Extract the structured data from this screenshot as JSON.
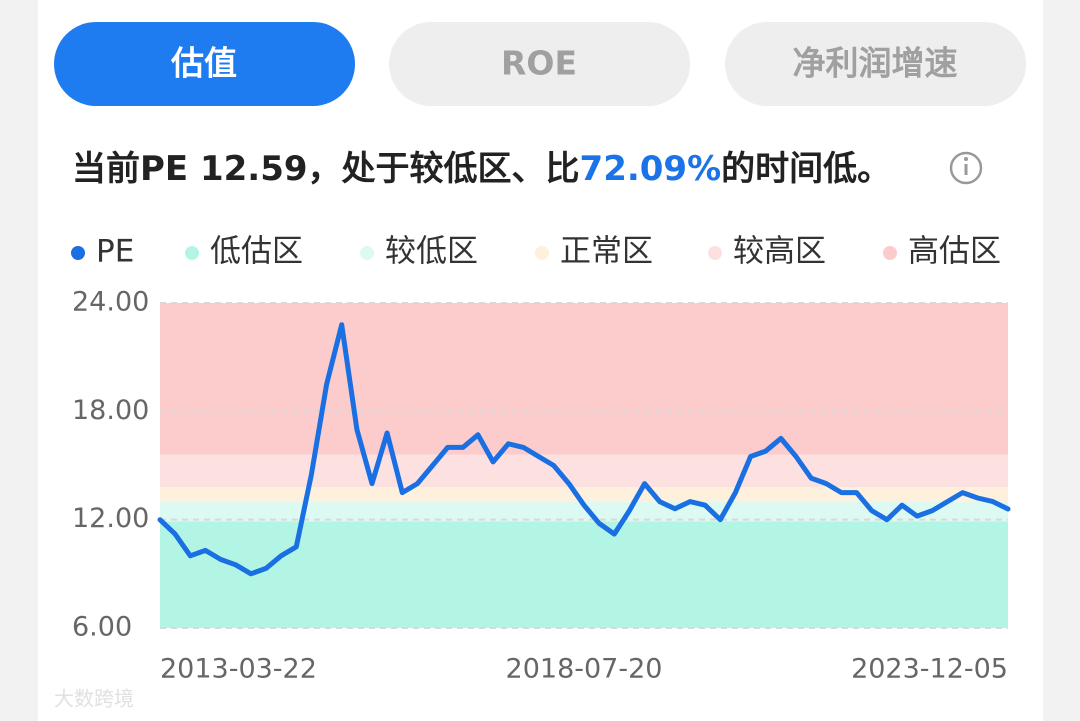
{
  "tabs": [
    "估值",
    "ROE",
    "净利润增速"
  ],
  "headline": {
    "prefix": "当前PE 12.59，处于较低区、比",
    "highlight": "72.09%",
    "suffix": "的时间低。"
  },
  "watermark": "大数跨境",
  "chart_data": {
    "type": "line",
    "categories": [
      "2013-03-22",
      null,
      null,
      null,
      null,
      null,
      null,
      null,
      null,
      null,
      null,
      null,
      null,
      null,
      null,
      null,
      null,
      null,
      null,
      null,
      null,
      null,
      null,
      null,
      null,
      null,
      null,
      null,
      "2018-07-20",
      null,
      null,
      null,
      null,
      null,
      null,
      null,
      null,
      null,
      null,
      null,
      null,
      null,
      null,
      null,
      null,
      null,
      null,
      null,
      null,
      null,
      null,
      null,
      null,
      null,
      null,
      null,
      "2023-12-05"
    ],
    "series": [
      {
        "name": "PE",
        "color": "#1a6fe3",
        "values": [
          12.0,
          11.2,
          10.0,
          10.3,
          9.8,
          9.5,
          9.0,
          9.3,
          10.0,
          10.5,
          14.5,
          19.5,
          22.8,
          17.0,
          14.0,
          16.8,
          13.5,
          14.0,
          15.0,
          16.0,
          16.0,
          16.7,
          15.2,
          16.2,
          16.0,
          15.5,
          15.0,
          14.0,
          12.8,
          11.8,
          11.2,
          12.5,
          14.0,
          13.0,
          12.6,
          13.0,
          12.8,
          12.0,
          13.5,
          15.5,
          15.8,
          16.5,
          15.5,
          14.3,
          14.0,
          13.5,
          13.5,
          12.5,
          12.0,
          12.8,
          12.2,
          12.5,
          13.0,
          13.5,
          13.2,
          13.0,
          12.59
        ]
      }
    ],
    "zones": [
      {
        "name": "低估区",
        "color": "#b2f5e4",
        "range": [
          6,
          11.9
        ]
      },
      {
        "name": "较低区",
        "color": "#dcfaf2",
        "range": [
          11.9,
          13.0
        ]
      },
      {
        "name": "正常区",
        "color": "#fdf1dd",
        "range": [
          13.0,
          13.8
        ]
      },
      {
        "name": "较高区",
        "color": "#fde1e1",
        "range": [
          13.8,
          15.6
        ]
      },
      {
        "name": "高估区",
        "color": "#fbcccb",
        "range": [
          15.6,
          24
        ]
      }
    ],
    "ylim": [
      6,
      24
    ],
    "yticks": [
      {
        "value": 6,
        "label": "6.00"
      },
      {
        "value": 12,
        "label": "12.00"
      },
      {
        "value": 18,
        "label": "18.00"
      },
      {
        "value": 24,
        "label": "24.00"
      }
    ],
    "grid": true
  }
}
